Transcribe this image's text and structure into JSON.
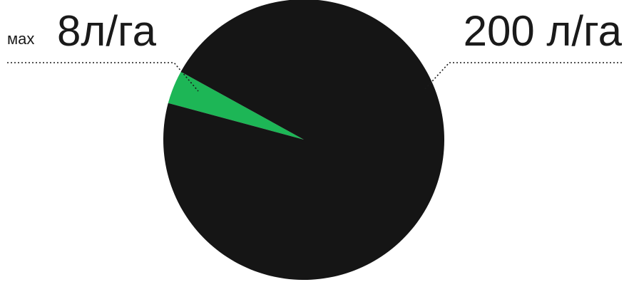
{
  "chart_data": {
    "type": "pie",
    "series": [
      {
        "values": [
          200,
          8
        ],
        "labels": [
          "200 л/га",
          "8л/га"
        ],
        "colors": [
          "#151515",
          "#1db656"
        ]
      }
    ],
    "annotations": {
      "small": {
        "prefix": "мах",
        "value": "8л/га"
      },
      "large": {
        "value": "200 л/га"
      }
    },
    "legend": "none",
    "grid": false
  }
}
